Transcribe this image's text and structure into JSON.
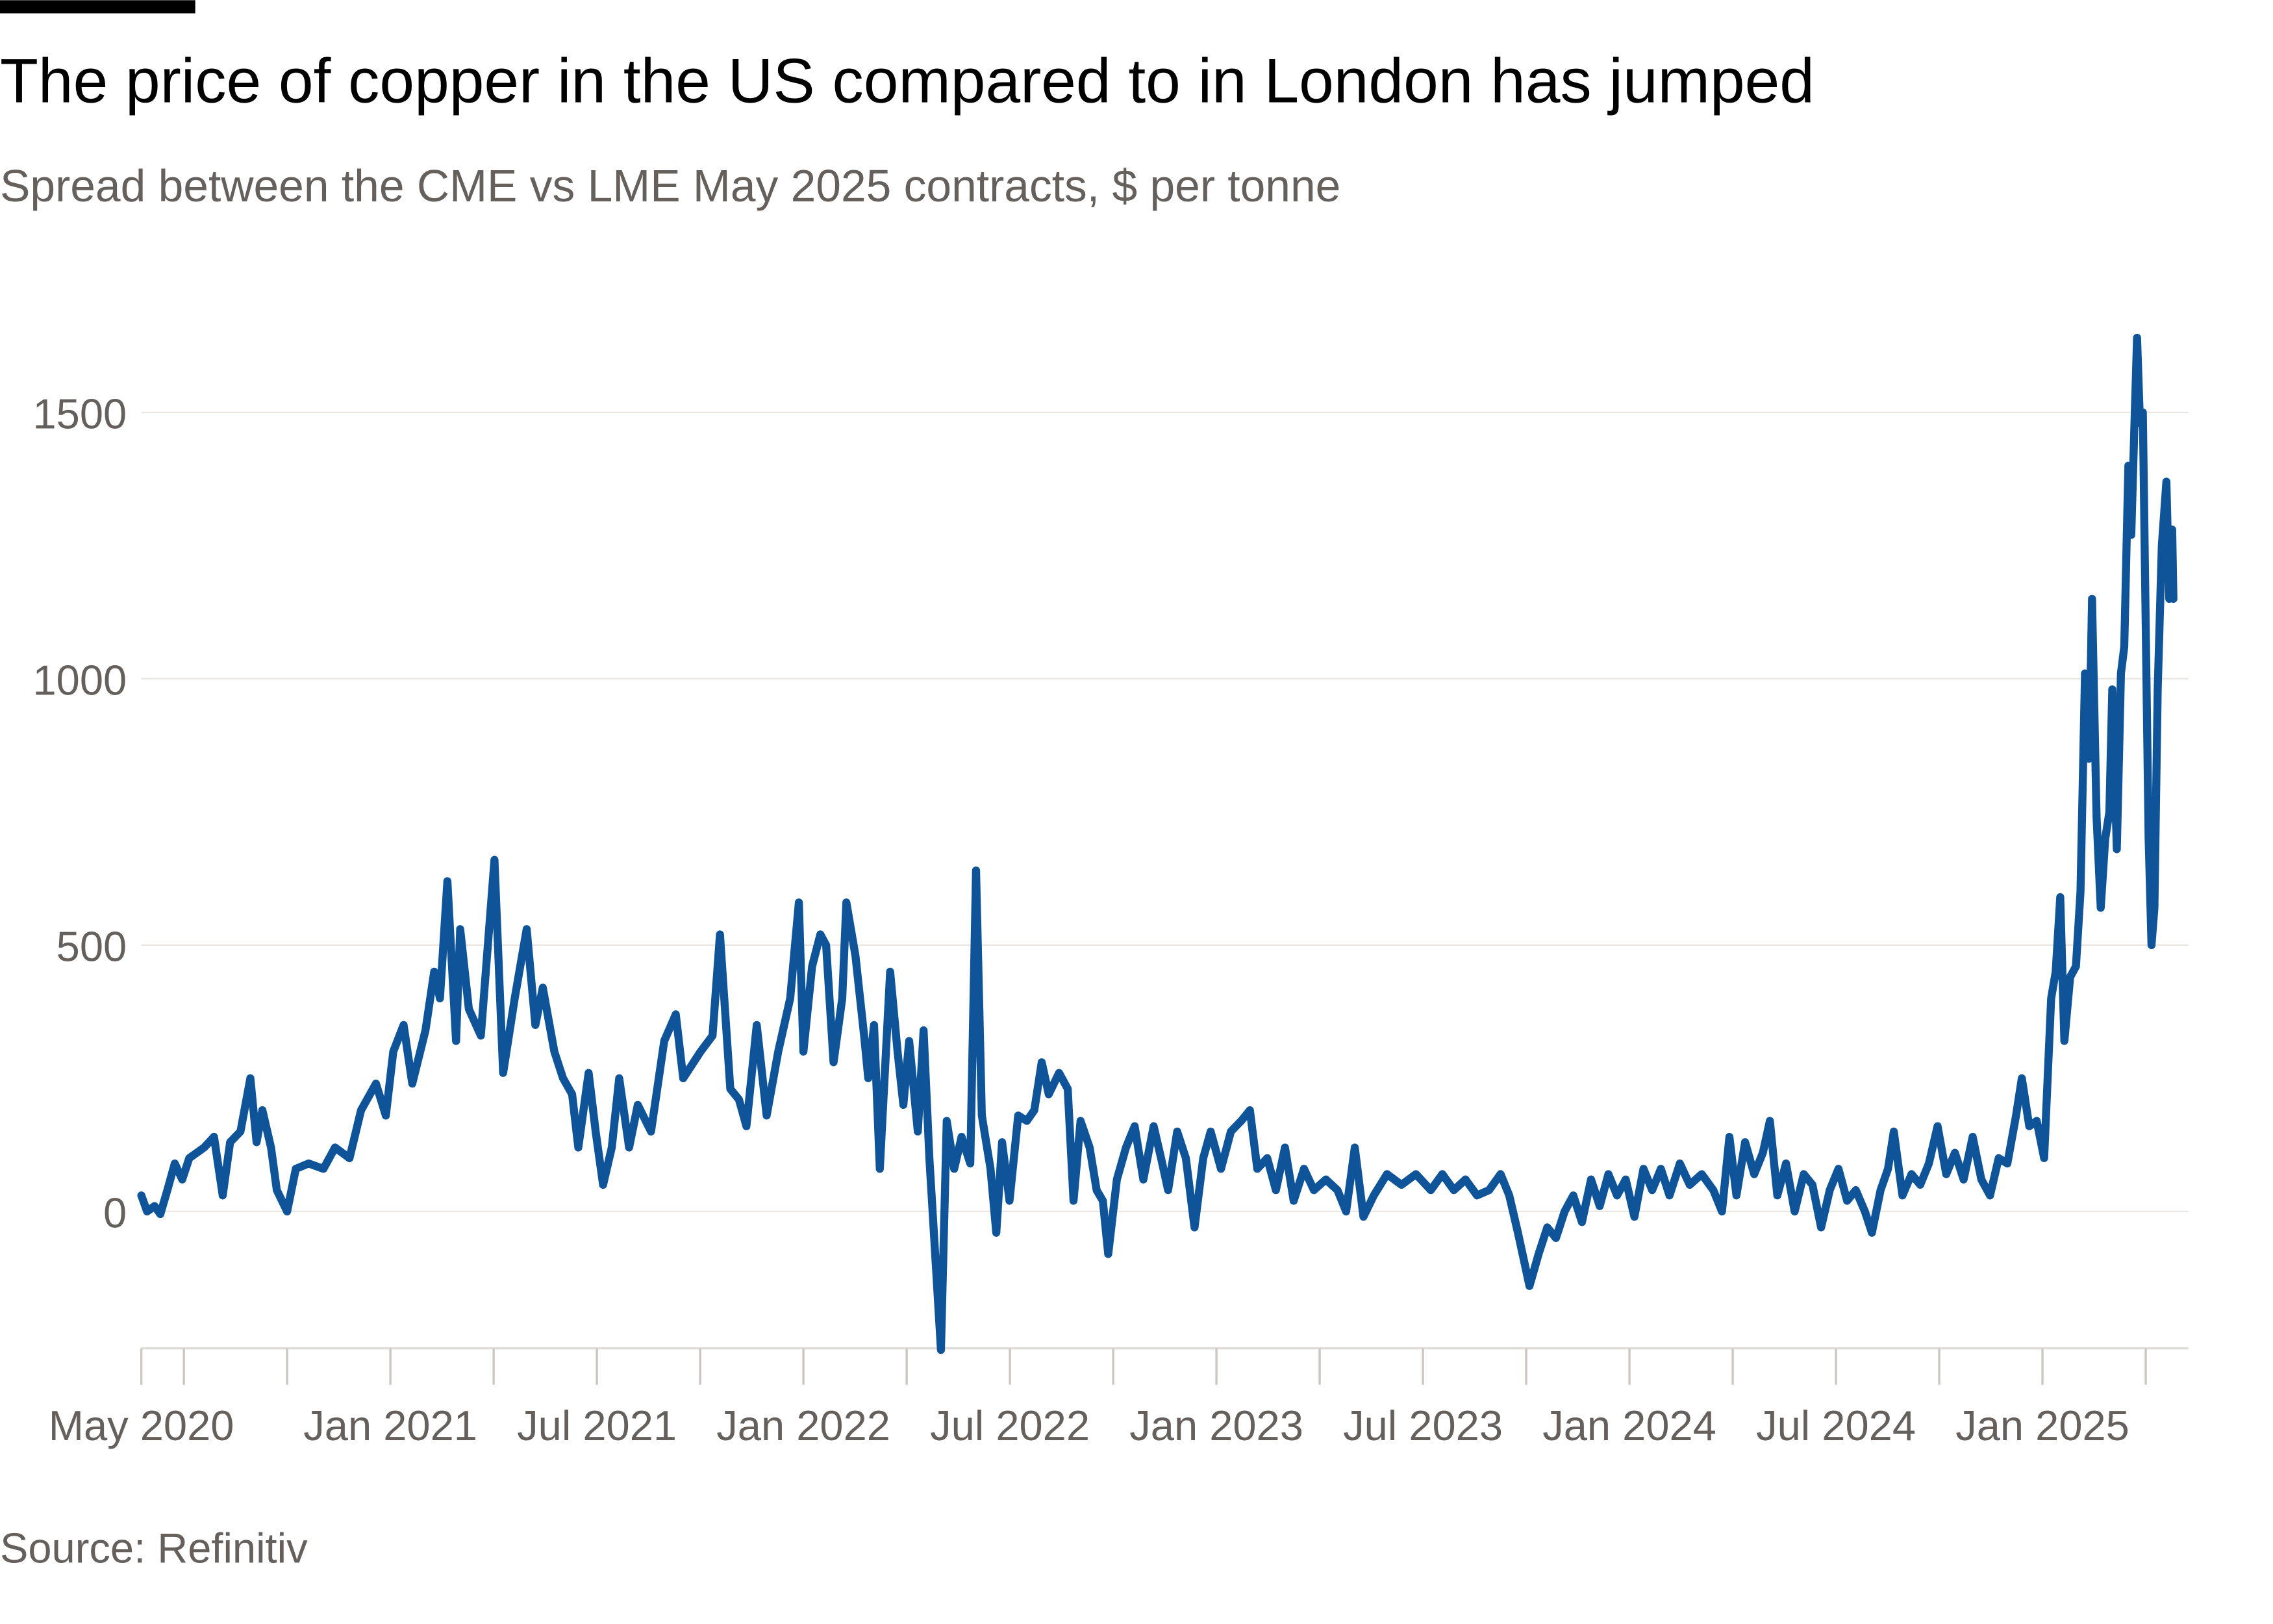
{
  "chart_data": {
    "type": "line",
    "title": "The price of copper in the US compared to in London has jumped",
    "subtitle": "Spread between the CME vs LME May 2025 contracts, $ per tonne",
    "source": "Source: Refinitiv",
    "color": "#0f5499",
    "grid": true,
    "xlim": [
      2020.397,
      2025.35
    ],
    "ylim": [
      -257,
      1650
    ],
    "yticks": [
      0,
      500,
      1000,
      1500
    ],
    "xticks": [
      {
        "value": 2020.397,
        "label": "May 2020"
      },
      {
        "value": 2020.5,
        "label": null
      },
      {
        "value": 2020.75,
        "label": null
      },
      {
        "value": 2021.0,
        "label": "Jan 2021"
      },
      {
        "value": 2021.25,
        "label": null
      },
      {
        "value": 2021.5,
        "label": "Jul 2021"
      },
      {
        "value": 2021.75,
        "label": null
      },
      {
        "value": 2022.0,
        "label": "Jan 2022"
      },
      {
        "value": 2022.25,
        "label": null
      },
      {
        "value": 2022.5,
        "label": "Jul 2022"
      },
      {
        "value": 2022.75,
        "label": null
      },
      {
        "value": 2023.0,
        "label": "Jan 2023"
      },
      {
        "value": 2023.25,
        "label": null
      },
      {
        "value": 2023.5,
        "label": "Jul 2023"
      },
      {
        "value": 2023.75,
        "label": null
      },
      {
        "value": 2024.0,
        "label": "Jan 2024"
      },
      {
        "value": 2024.25,
        "label": null
      },
      {
        "value": 2024.5,
        "label": "Jul 2024"
      },
      {
        "value": 2024.75,
        "label": null
      },
      {
        "value": 2025.0,
        "label": "Jan 2025"
      },
      {
        "value": 2025.25,
        "label": null
      }
    ],
    "x": [
      2020.397,
      2020.411,
      2020.429,
      2020.443,
      2020.46,
      2020.478,
      2020.496,
      2020.513,
      2020.549,
      2020.573,
      2020.594,
      2020.612,
      2020.637,
      2020.661,
      2020.676,
      2020.69,
      2020.711,
      2020.725,
      2020.75,
      2020.771,
      2020.802,
      2020.838,
      2020.866,
      2020.901,
      2020.929,
      2020.965,
      2020.989,
      2021.007,
      2021.032,
      2021.053,
      2021.085,
      2021.106,
      2021.12,
      2021.138,
      2021.159,
      2021.169,
      2021.19,
      2021.219,
      2021.252,
      2021.273,
      2021.301,
      2021.33,
      2021.351,
      2021.369,
      2021.397,
      2021.418,
      2021.44,
      2021.455,
      2021.48,
      2021.497,
      2021.515,
      2021.536,
      2021.554,
      2021.578,
      2021.599,
      2021.631,
      2021.663,
      2021.691,
      2021.709,
      2021.751,
      2021.78,
      2021.798,
      2021.823,
      2021.844,
      2021.862,
      2021.887,
      2021.911,
      2021.939,
      2021.968,
      2021.989,
      2022.0,
      2022.021,
      2022.041,
      2022.055,
      2022.073,
      2022.094,
      2022.104,
      2022.126,
      2022.147,
      2022.157,
      2022.171,
      2022.185,
      2022.21,
      2022.228,
      2022.242,
      2022.256,
      2022.277,
      2022.291,
      2022.305,
      2022.333,
      2022.347,
      2022.365,
      2022.383,
      2022.404,
      2022.418,
      2022.432,
      2022.453,
      2022.467,
      2022.481,
      2022.499,
      2022.52,
      2022.541,
      2022.559,
      2022.577,
      2022.594,
      2022.619,
      2022.64,
      2022.654,
      2022.671,
      2022.693,
      2022.71,
      2022.725,
      2022.738,
      2022.759,
      2022.781,
      2022.802,
      2022.823,
      2022.848,
      2022.866,
      2022.883,
      2022.905,
      2022.926,
      2022.947,
      2022.968,
      2022.986,
      2023.011,
      2023.035,
      2023.06,
      2023.081,
      2023.099,
      2023.123,
      2023.144,
      2023.166,
      2023.187,
      2023.212,
      2023.236,
      2023.265,
      2023.293,
      2023.314,
      2023.335,
      2023.356,
      2023.381,
      2023.413,
      2023.448,
      2023.483,
      2023.519,
      2023.547,
      2023.575,
      2023.603,
      2023.631,
      2023.66,
      2023.688,
      2023.709,
      2023.73,
      2023.758,
      2023.78,
      2023.801,
      2023.822,
      2023.843,
      2023.864,
      2023.885,
      2023.907,
      2023.928,
      2023.949,
      2023.97,
      2023.991,
      2024.012,
      2024.034,
      2024.055,
      2024.076,
      2024.097,
      2024.122,
      2024.146,
      2024.175,
      2024.203,
      2024.224,
      2024.242,
      2024.259,
      2024.28,
      2024.302,
      2024.323,
      2024.34,
      2024.358,
      2024.379,
      2024.4,
      2024.422,
      2024.443,
      2024.464,
      2024.485,
      2024.506,
      2024.527,
      2024.548,
      2024.57,
      2024.587,
      2024.608,
      2024.626,
      2024.64,
      2024.661,
      2024.683,
      2024.704,
      2024.725,
      2024.746,
      2024.767,
      2024.788,
      2024.809,
      2024.831,
      2024.852,
      2024.873,
      2024.894,
      2024.915,
      2024.936,
      2024.95,
      2024.968,
      2024.986,
      2025.004,
      2025.021,
      2025.032,
      2025.043,
      2025.053,
      2025.067,
      2025.081,
      2025.092,
      2025.103,
      2025.113,
      2025.12,
      2025.131,
      2025.141,
      2025.152,
      2025.162,
      2025.169,
      2025.18,
      2025.19,
      2025.198,
      2025.208,
      2025.215,
      2025.222,
      2025.229,
      2025.236,
      2025.243,
      2025.25,
      2025.257,
      2025.264,
      2025.271,
      2025.279,
      2025.289,
      2025.3,
      2025.307,
      2025.314,
      2025.317
    ],
    "values": [
      30,
      0,
      10,
      -5,
      40,
      90,
      60,
      100,
      120,
      140,
      30,
      130,
      150,
      250,
      130,
      190,
      120,
      40,
      0,
      80,
      90,
      80,
      120,
      100,
      190,
      240,
      180,
      300,
      350,
      240,
      340,
      450,
      400,
      620,
      320,
      530,
      380,
      330,
      660,
      260,
      400,
      530,
      350,
      420,
      300,
      250,
      220,
      120,
      260,
      150,
      50,
      120,
      250,
      120,
      200,
      150,
      320,
      370,
      250,
      300,
      330,
      520,
      230,
      210,
      160,
      350,
      180,
      300,
      400,
      580,
      300,
      460,
      520,
      500,
      280,
      400,
      580,
      480,
      330,
      250,
      350,
      80,
      450,
      300,
      200,
      320,
      150,
      340,
      100,
      -260,
      170,
      80,
      140,
      90,
      640,
      180,
      80,
      -40,
      130,
      20,
      180,
      170,
      190,
      280,
      220,
      260,
      230,
      20,
      170,
      120,
      40,
      20,
      -80,
      60,
      120,
      160,
      60,
      160,
      100,
      40,
      150,
      100,
      -30,
      100,
      150,
      80,
      150,
      170,
      190,
      80,
      100,
      40,
      120,
      20,
      80,
      40,
      60,
      40,
      0,
      120,
      -10,
      30,
      70,
      50,
      70,
      40,
      70,
      40,
      60,
      30,
      40,
      70,
      30,
      -40,
      -140,
      -80,
      -30,
      -50,
      0,
      30,
      -20,
      60,
      10,
      70,
      30,
      60,
      -10,
      80,
      40,
      80,
      30,
      90,
      50,
      70,
      40,
      0,
      140,
      30,
      130,
      70,
      110,
      170,
      30,
      90,
      0,
      70,
      50,
      -30,
      40,
      80,
      20,
      40,
      0,
      -40,
      40,
      80,
      150,
      30,
      70,
      50,
      90,
      160,
      70,
      110,
      60,
      140,
      60,
      30,
      100,
      90,
      180,
      250,
      160,
      170,
      100,
      400,
      450,
      590,
      320,
      440,
      460,
      600,
      1010,
      850,
      1150,
      740,
      570,
      700,
      750,
      980,
      680,
      1010,
      1060,
      1400,
      1270,
      1460,
      1640,
      1480,
      1500,
      1100,
      700,
      500,
      570,
      980,
      1250,
      1370,
      1150,
      1280,
      1150
    ]
  }
}
